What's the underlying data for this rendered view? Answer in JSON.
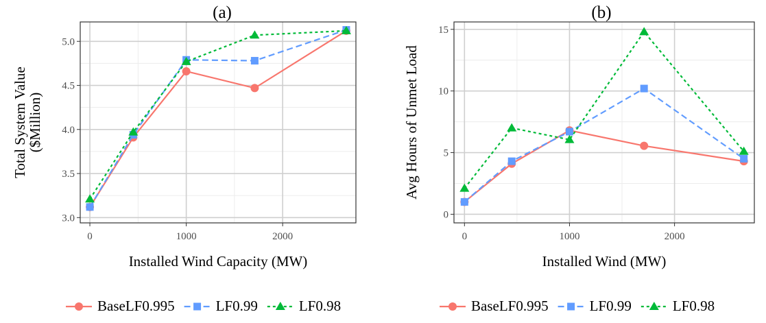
{
  "colors": {
    "BaseLF0.995": "#f8766d",
    "LF0.99": "#619cff",
    "LF0.98": "#00ba38",
    "grid_major": "#cfcfcf",
    "grid_minor": "#ececec",
    "border": "#333333"
  },
  "chart_data": [
    {
      "type": "line",
      "title": "(a)",
      "xlabel": "Installed Wind Capacity (MW)",
      "ylabel": [
        "Total System Value",
        "($Million)"
      ],
      "xlim": [
        -100,
        2760
      ],
      "ylim": [
        2.94,
        5.22
      ],
      "xticks": [
        0,
        1000,
        2000
      ],
      "xtick_labels": [
        "0",
        "1000",
        "2000"
      ],
      "yticks": [
        3.0,
        3.5,
        4.0,
        4.5,
        5.0
      ],
      "ytick_labels": [
        "3.0",
        "3.5",
        "4.0",
        "4.5",
        "5.0"
      ],
      "grid": true,
      "legend": "bottom",
      "x": [
        0,
        450,
        1000,
        1710,
        2660
      ],
      "series": [
        {
          "name": "BaseLF0.995",
          "marker": "circle",
          "dash": "solid",
          "values": [
            3.12,
            3.91,
            4.66,
            4.47,
            5.12
          ]
        },
        {
          "name": "LF0.99",
          "marker": "square",
          "dash": "dashed",
          "values": [
            3.12,
            3.94,
            4.79,
            4.78,
            5.13
          ]
        },
        {
          "name": "LF0.98",
          "marker": "triangle",
          "dash": "dotted",
          "values": [
            3.21,
            3.97,
            4.77,
            5.07,
            5.12
          ]
        }
      ]
    },
    {
      "type": "line",
      "title": "(b)",
      "xlabel": "Installed Wind (MW)",
      "ylabel": [
        "Avg Hours of Unmet Load"
      ],
      "xlim": [
        -100,
        2760
      ],
      "ylim": [
        -0.7,
        15.6
      ],
      "xticks": [
        0,
        1000,
        2000
      ],
      "xtick_labels": [
        "0",
        "1000",
        "2000"
      ],
      "yticks": [
        0,
        5,
        10,
        15
      ],
      "ytick_labels": [
        "0",
        "5",
        "10",
        "15"
      ],
      "grid": true,
      "legend": "bottom",
      "x": [
        0,
        450,
        1000,
        1710,
        2660
      ],
      "series": [
        {
          "name": "BaseLF0.995",
          "marker": "circle",
          "dash": "solid",
          "values": [
            1.0,
            4.1,
            6.8,
            5.55,
            4.3
          ]
        },
        {
          "name": "LF0.99",
          "marker": "square",
          "dash": "dashed",
          "values": [
            1.0,
            4.3,
            6.7,
            10.2,
            4.5
          ]
        },
        {
          "name": "LF0.98",
          "marker": "triangle",
          "dash": "dotted",
          "values": [
            2.1,
            7.0,
            6.05,
            14.8,
            5.1
          ]
        }
      ]
    }
  ]
}
